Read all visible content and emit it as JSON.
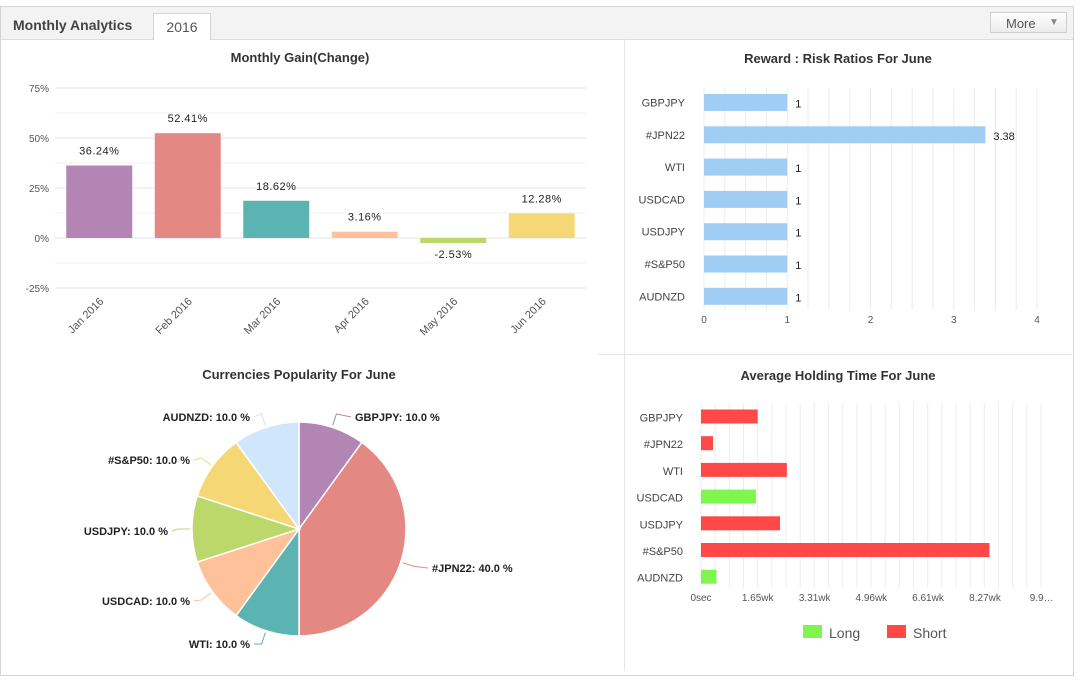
{
  "header": {
    "title": "Monthly Analytics",
    "tab_label": "2016",
    "more_label": "More"
  },
  "chart_data": [
    {
      "id": "monthly_gain",
      "type": "bar",
      "title": "Monthly Gain(Change)",
      "categories": [
        "Jan 2016",
        "Feb 2016",
        "Mar 2016",
        "Apr 2016",
        "May 2016",
        "Jun 2016"
      ],
      "values": [
        36.24,
        52.41,
        18.62,
        3.16,
        -2.53,
        12.28
      ],
      "value_labels": [
        "36.24%",
        "52.41%",
        "18.62%",
        "3.16%",
        "-2.53%",
        "12.28%"
      ],
      "colors": [
        "#b385b4",
        "#e48883",
        "#5bb4b1",
        "#ffc19a",
        "#bcd86b",
        "#f5d776"
      ],
      "ylim": [
        -25,
        75
      ],
      "yticks": [
        "75%",
        "50%",
        "25%",
        "0%",
        "-25%"
      ],
      "ytick_values": [
        75,
        50,
        25,
        0,
        -25
      ],
      "grid": true
    },
    {
      "id": "reward_risk",
      "type": "bar",
      "orientation": "horizontal",
      "title": "Reward : Risk Ratios For June",
      "categories": [
        "GBPJPY",
        "#JPN22",
        "WTI",
        "USDCAD",
        "USDJPY",
        "#S&P50",
        "AUDNZD"
      ],
      "values": [
        1,
        3.38,
        1,
        1,
        1,
        1,
        1
      ],
      "value_labels": [
        "1",
        "3.38",
        "1",
        "1",
        "1",
        "1",
        "1"
      ],
      "color": "#9fcdf4",
      "xlim": [
        0,
        4
      ],
      "xticks": [
        "0",
        "1",
        "2",
        "3",
        "4"
      ],
      "grid": true
    },
    {
      "id": "currency_popularity",
      "type": "pie",
      "title": "Currencies Popularity For June",
      "labels": [
        "GBPJPY: 10.0 %",
        "#JPN22: 40.0 %",
        "WTI: 10.0 %",
        "USDCAD: 10.0 %",
        "USDJPY: 10.0 %",
        "#S&P50: 10.0 %",
        "AUDNZD: 10.0 %"
      ],
      "values": [
        10,
        40,
        10,
        10,
        10,
        10,
        10
      ],
      "colors": [
        "#b385b4",
        "#e48883",
        "#5bb4b1",
        "#ffc19a",
        "#bcd86b",
        "#f5d776",
        "#d0e6fa"
      ]
    },
    {
      "id": "holding_time",
      "type": "bar",
      "orientation": "horizontal",
      "title": "Average Holding Time For June",
      "categories": [
        "GBPJPY",
        "#JPN22",
        "WTI",
        "USDCAD",
        "USDJPY",
        "#S&P50",
        "AUDNZD"
      ],
      "values_wk": [
        1.65,
        0.35,
        2.5,
        1.6,
        2.3,
        8.4,
        0.45
      ],
      "series_type": [
        "Short",
        "Short",
        "Short",
        "Long",
        "Short",
        "Short",
        "Long"
      ],
      "xlim_wk": [
        0,
        9.9
      ],
      "xtick_values_wk": [
        0,
        1.65,
        3.31,
        4.96,
        6.61,
        8.27,
        9.92
      ],
      "xticks": [
        "0sec",
        "1.65wk",
        "3.31wk",
        "4.96wk",
        "6.61wk",
        "8.27wk",
        "9.9…"
      ],
      "legend": [
        {
          "name": "Long",
          "color": "#7ff650"
        },
        {
          "name": "Short",
          "color": "#ff4848"
        }
      ],
      "legend_position": "bottom"
    }
  ]
}
